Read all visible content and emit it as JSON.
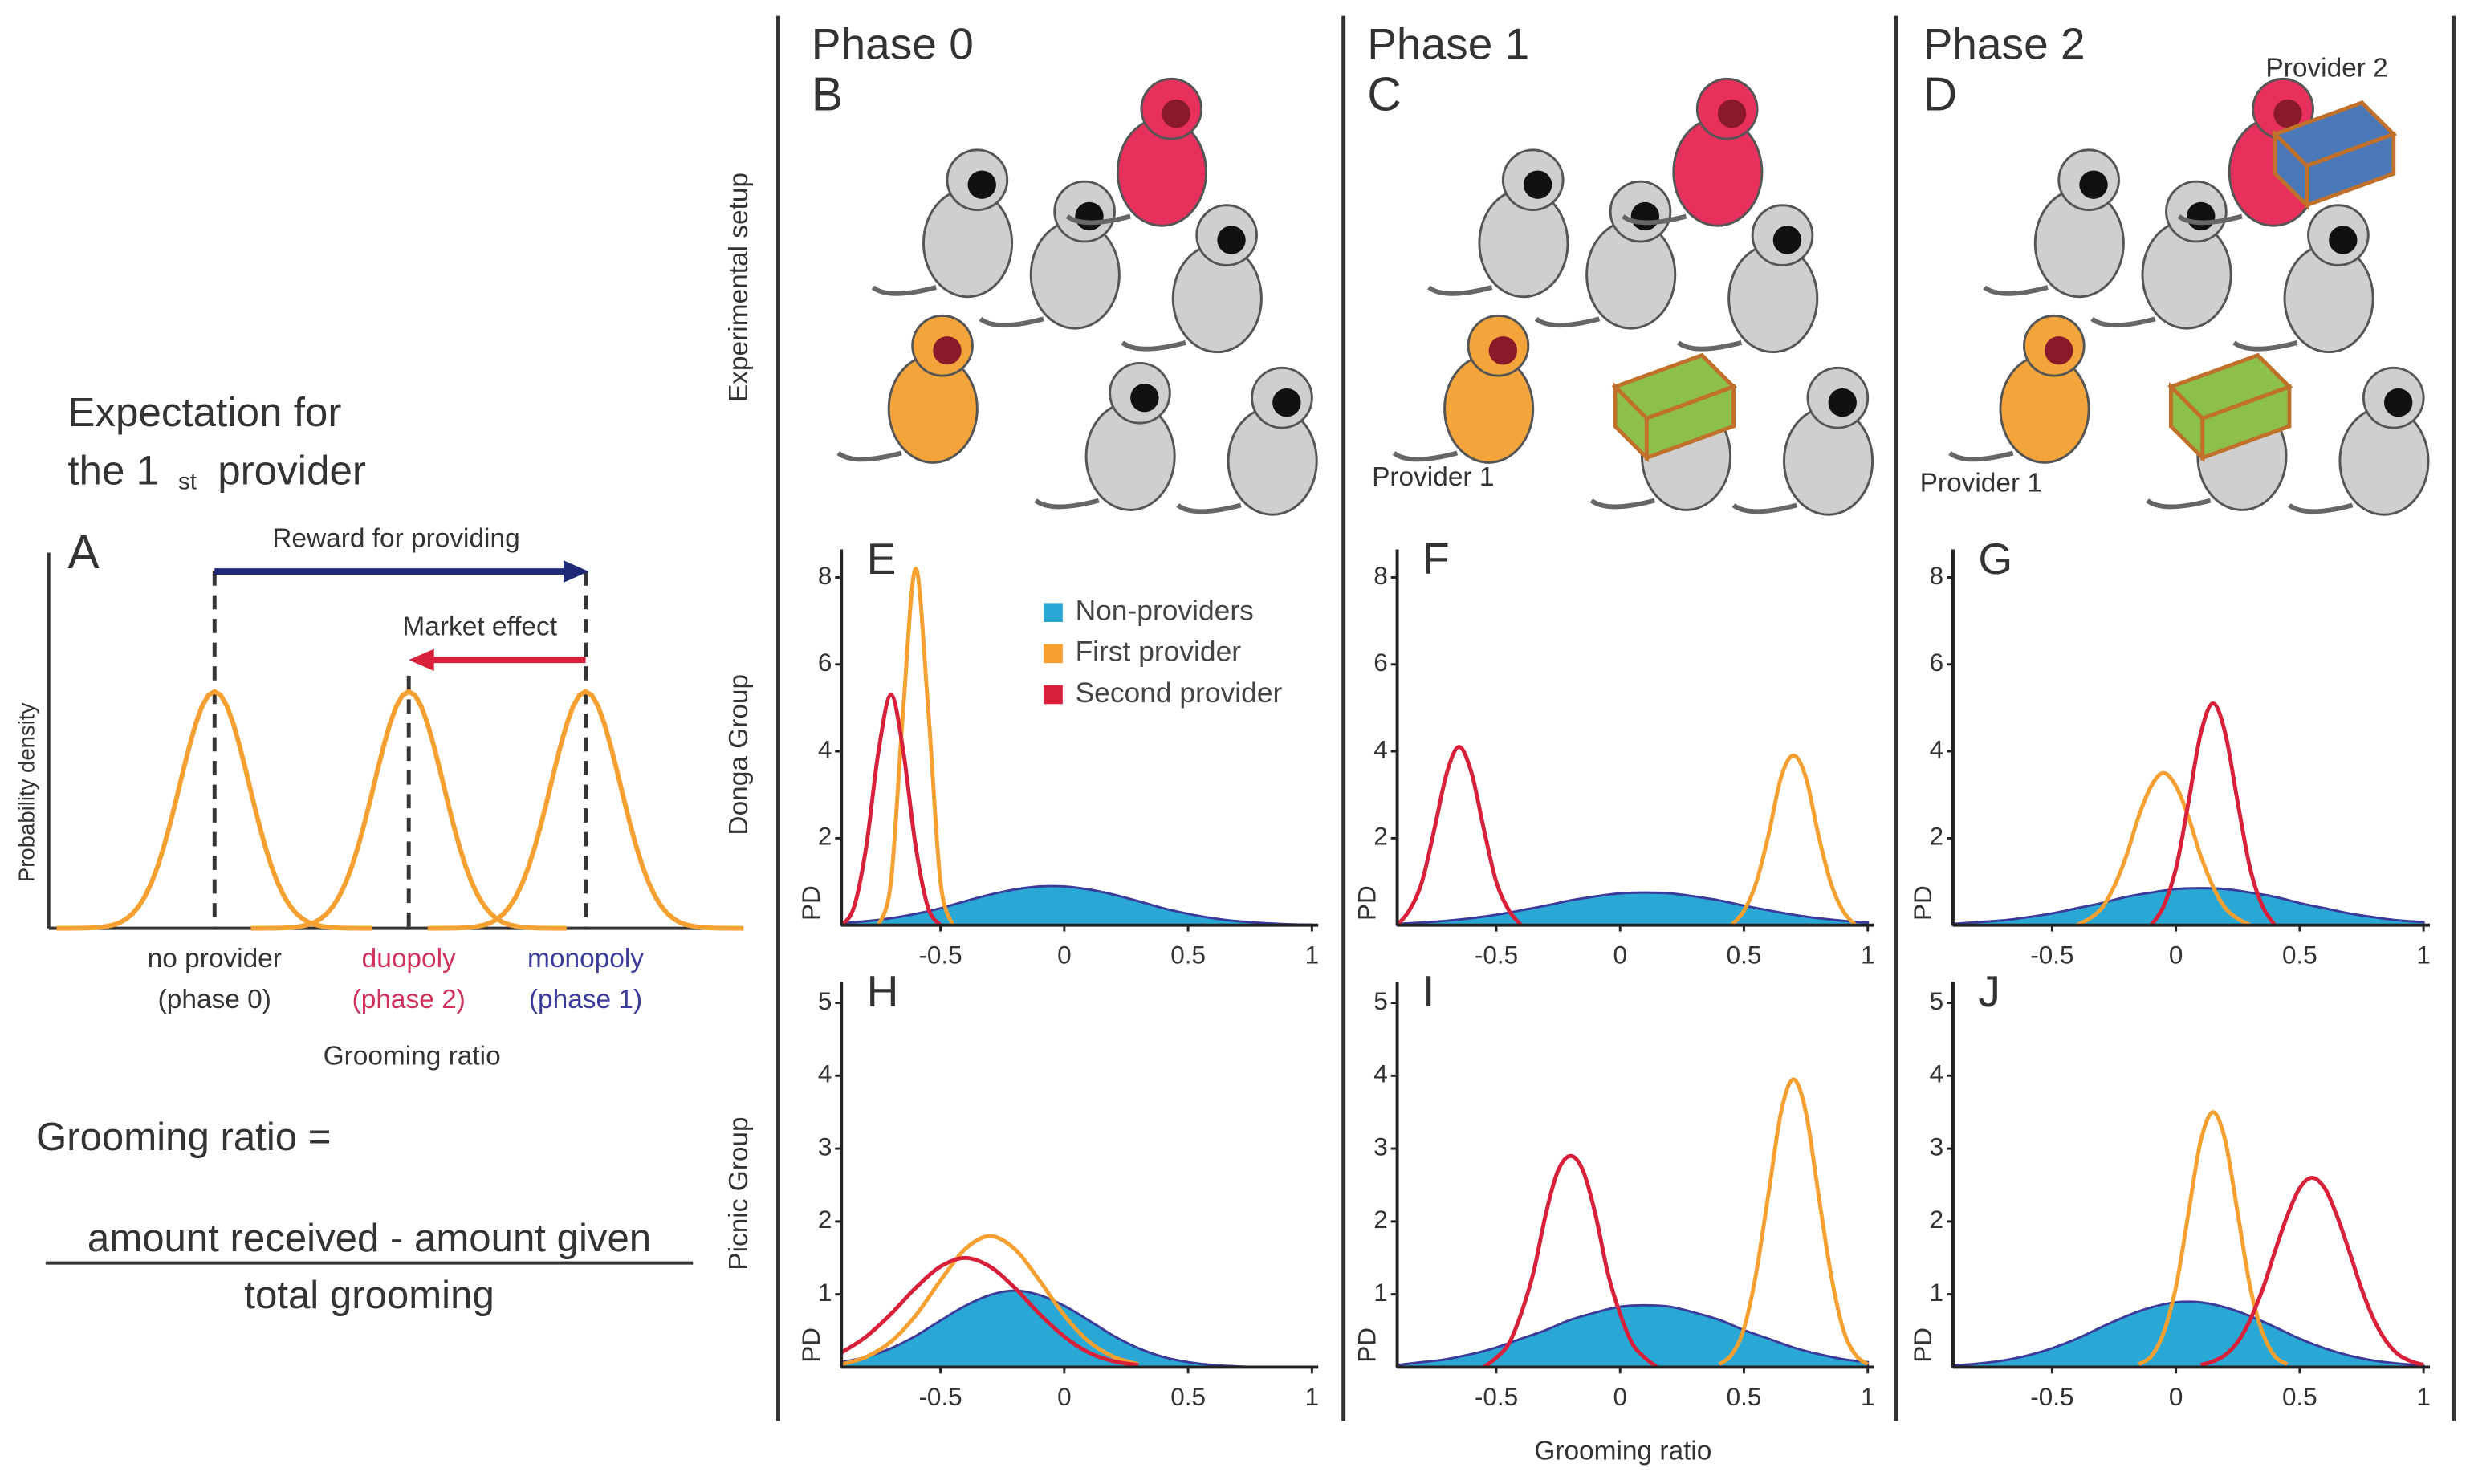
{
  "panel_a": {
    "title_line1": "Expectation for",
    "title_line2": "the 1",
    "title_sup": "st",
    "title_line2_end": "provider",
    "letter": "A",
    "reward": "Reward for providing",
    "market": "Market effect",
    "ylabel": "Probability density",
    "xlabel": "Grooming ratio",
    "categories": [
      {
        "name": "no provider",
        "phase": "(phase 0)",
        "color": "#333333"
      },
      {
        "name": "duopoly",
        "phase": "(phase 2)",
        "color": "#d0315a"
      },
      {
        "name": "monopoly",
        "phase": "(phase 1)",
        "color": "#3b3b9b"
      }
    ],
    "formula_lhs": "Grooming ratio =",
    "numerator": "amount received - amount given",
    "denominator": "total grooming"
  },
  "setup_label": "Experimental setup",
  "group_labels": [
    "Donga Group",
    "Picnic Group"
  ],
  "x_label": "Grooming ratio",
  "phases": [
    {
      "title": "Phase 0",
      "letter": "B"
    },
    {
      "title": "Phase 1",
      "letter": "C",
      "provider_1": "Provider 1"
    },
    {
      "title": "Phase 2",
      "letter": "D",
      "provider_1": "Provider 1",
      "provider_2": "Provider 2"
    }
  ],
  "chart_data": [
    {
      "type": "line",
      "letter": "E",
      "ylabel": "PD",
      "xlim": [
        -0.9,
        1
      ],
      "ylim": [
        0,
        8.5
      ],
      "xticks": [
        -0.5,
        0,
        0.5,
        1
      ],
      "yticks": [
        2,
        4,
        6,
        8
      ],
      "legend": "upper right",
      "series": [
        {
          "name": "Non-providers",
          "color": "#29a8d6",
          "fill": true,
          "x": [
            -0.9,
            -0.8,
            -0.7,
            -0.6,
            -0.5,
            -0.4,
            -0.3,
            -0.2,
            -0.1,
            0,
            0.1,
            0.2,
            0.3,
            0.4,
            0.5,
            0.6,
            0.7,
            0.8,
            0.9,
            1
          ],
          "values": [
            0.05,
            0.09,
            0.16,
            0.26,
            0.39,
            0.55,
            0.7,
            0.82,
            0.89,
            0.89,
            0.82,
            0.7,
            0.55,
            0.39,
            0.26,
            0.16,
            0.09,
            0.05,
            0.02,
            0.01
          ]
        },
        {
          "name": "First provider",
          "color": "#f5a030",
          "x": [
            -0.75,
            -0.7,
            -0.65,
            -0.6,
            -0.55,
            -0.5,
            -0.45
          ],
          "values": [
            0,
            1.0,
            5.0,
            8.2,
            5.0,
            1.0,
            0
          ]
        },
        {
          "name": "Second provider",
          "color": "#d9203a",
          "x": [
            -0.9,
            -0.85,
            -0.8,
            -0.75,
            -0.7,
            -0.65,
            -0.6,
            -0.55,
            -0.5
          ],
          "values": [
            0,
            0.4,
            1.8,
            4.0,
            5.3,
            4.0,
            1.8,
            0.4,
            0
          ]
        }
      ]
    },
    {
      "type": "line",
      "letter": "F",
      "ylabel": "PD",
      "xlim": [
        -0.9,
        1
      ],
      "ylim": [
        0,
        8.5
      ],
      "xticks": [
        -0.5,
        0,
        0.5,
        1
      ],
      "yticks": [
        2,
        4,
        6,
        8
      ],
      "series": [
        {
          "color": "#29a8d6",
          "fill": true,
          "x": [
            -0.9,
            -0.8,
            -0.7,
            -0.6,
            -0.5,
            -0.4,
            -0.3,
            -0.2,
            -0.1,
            0,
            0.1,
            0.2,
            0.3,
            0.4,
            0.5,
            0.6,
            0.7,
            0.8,
            0.9,
            1
          ],
          "values": [
            0.03,
            0.06,
            0.1,
            0.16,
            0.24,
            0.34,
            0.45,
            0.57,
            0.66,
            0.73,
            0.75,
            0.73,
            0.66,
            0.57,
            0.45,
            0.34,
            0.24,
            0.16,
            0.1,
            0.06
          ]
        },
        {
          "color": "#f5a030",
          "x": [
            0.45,
            0.5,
            0.55,
            0.6,
            0.65,
            0.7,
            0.75,
            0.8,
            0.85,
            0.9,
            0.95
          ],
          "values": [
            0,
            0.33,
            0.98,
            2.1,
            3.4,
            3.9,
            3.4,
            2.1,
            0.98,
            0.33,
            0
          ]
        },
        {
          "color": "#d9203a",
          "x": [
            -0.9,
            -0.85,
            -0.8,
            -0.75,
            -0.7,
            -0.65,
            -0.6,
            -0.55,
            -0.5,
            -0.45,
            -0.4
          ],
          "values": [
            0,
            0.35,
            1.0,
            2.2,
            3.5,
            4.1,
            3.5,
            2.2,
            1.0,
            0.35,
            0
          ]
        }
      ]
    },
    {
      "type": "line",
      "letter": "G",
      "ylabel": "PD",
      "xlim": [
        -0.9,
        1
      ],
      "ylim": [
        0,
        8.5
      ],
      "xticks": [
        -0.5,
        0,
        0.5,
        1
      ],
      "yticks": [
        2,
        4,
        6,
        8
      ],
      "series": [
        {
          "color": "#29a8d6",
          "fill": true,
          "x": [
            -0.9,
            -0.8,
            -0.7,
            -0.6,
            -0.5,
            -0.4,
            -0.3,
            -0.2,
            -0.1,
            0,
            0.1,
            0.2,
            0.3,
            0.4,
            0.5,
            0.6,
            0.7,
            0.8,
            0.9,
            1
          ],
          "values": [
            0.03,
            0.07,
            0.11,
            0.18,
            0.27,
            0.39,
            0.51,
            0.65,
            0.75,
            0.83,
            0.85,
            0.83,
            0.75,
            0.65,
            0.51,
            0.39,
            0.27,
            0.18,
            0.11,
            0.07
          ]
        },
        {
          "color": "#f5a030",
          "x": [
            -0.4,
            -0.35,
            -0.3,
            -0.25,
            -0.2,
            -0.15,
            -0.1,
            -0.05,
            0,
            0.05,
            0.1,
            0.15,
            0.2,
            0.25,
            0.3
          ],
          "values": [
            0,
            0.15,
            0.39,
            0.88,
            1.6,
            2.5,
            3.2,
            3.5,
            3.2,
            2.5,
            1.6,
            0.88,
            0.39,
            0.15,
            0
          ]
        },
        {
          "color": "#d9203a",
          "x": [
            -0.1,
            -0.05,
            0,
            0.05,
            0.1,
            0.15,
            0.2,
            0.25,
            0.3,
            0.35,
            0.4
          ],
          "values": [
            0,
            0.43,
            1.3,
            2.8,
            4.4,
            5.1,
            4.4,
            2.8,
            1.3,
            0.43,
            0
          ]
        }
      ]
    },
    {
      "type": "line",
      "letter": "H",
      "ylabel": "PD",
      "xlim": [
        -0.9,
        1
      ],
      "ylim": [
        0,
        5.2
      ],
      "xticks": [
        -0.5,
        0,
        0.5,
        1
      ],
      "yticks": [
        1,
        2,
        3,
        4,
        5
      ],
      "series": [
        {
          "color": "#29a8d6",
          "fill": true,
          "x": [
            -0.9,
            -0.8,
            -0.7,
            -0.6,
            -0.5,
            -0.4,
            -0.3,
            -0.2,
            -0.1,
            0,
            0.1,
            0.2,
            0.3,
            0.4,
            0.5,
            0.6,
            0.7,
            0.8,
            0.9,
            1
          ],
          "values": [
            0.07,
            0.14,
            0.26,
            0.43,
            0.64,
            0.84,
            0.99,
            1.05,
            0.99,
            0.84,
            0.64,
            0.43,
            0.26,
            0.14,
            0.07,
            0.03,
            0.01,
            0,
            0,
            0
          ]
        },
        {
          "color": "#f5a030",
          "x": [
            -0.9,
            -0.8,
            -0.7,
            -0.6,
            -0.5,
            -0.4,
            -0.3,
            -0.2,
            -0.1,
            0,
            0.1,
            0.2,
            0.3
          ],
          "values": [
            0.04,
            0.14,
            0.35,
            0.71,
            1.19,
            1.62,
            1.8,
            1.62,
            1.19,
            0.71,
            0.35,
            0.14,
            0.04
          ]
        },
        {
          "color": "#d9203a",
          "x": [
            -0.9,
            -0.8,
            -0.7,
            -0.6,
            -0.5,
            -0.4,
            -0.3,
            -0.2,
            -0.1,
            0,
            0.1,
            0.2,
            0.3
          ],
          "values": [
            0.2,
            0.42,
            0.73,
            1.09,
            1.38,
            1.5,
            1.38,
            1.09,
            0.73,
            0.42,
            0.2,
            0.08,
            0.03
          ]
        }
      ]
    },
    {
      "type": "line",
      "letter": "I",
      "ylabel": "PD",
      "xlim": [
        -0.9,
        1
      ],
      "ylim": [
        0,
        5.2
      ],
      "xticks": [
        -0.5,
        0,
        0.5,
        1
      ],
      "yticks": [
        1,
        2,
        3,
        4,
        5
      ],
      "series": [
        {
          "color": "#29a8d6",
          "fill": true,
          "x": [
            -0.9,
            -0.8,
            -0.7,
            -0.6,
            -0.5,
            -0.4,
            -0.3,
            -0.2,
            -0.1,
            0,
            0.1,
            0.2,
            0.3,
            0.4,
            0.5,
            0.6,
            0.7,
            0.8,
            0.9,
            1
          ],
          "values": [
            0.03,
            0.07,
            0.11,
            0.18,
            0.27,
            0.39,
            0.51,
            0.65,
            0.75,
            0.83,
            0.85,
            0.83,
            0.75,
            0.65,
            0.51,
            0.39,
            0.27,
            0.18,
            0.11,
            0.07
          ]
        },
        {
          "color": "#f5a030",
          "x": [
            0.4,
            0.45,
            0.5,
            0.55,
            0.6,
            0.65,
            0.7,
            0.75,
            0.8,
            0.85,
            0.9,
            0.95,
            1
          ],
          "values": [
            0.04,
            0.17,
            0.53,
            1.3,
            2.4,
            3.5,
            3.95,
            3.5,
            2.4,
            1.3,
            0.53,
            0.17,
            0.04
          ]
        },
        {
          "color": "#d9203a",
          "x": [
            -0.55,
            -0.5,
            -0.45,
            -0.4,
            -0.35,
            -0.3,
            -0.25,
            -0.2,
            -0.15,
            -0.1,
            -0.05,
            0,
            0.05,
            0.1,
            0.15
          ],
          "values": [
            0,
            0.13,
            0.32,
            0.73,
            1.3,
            2.1,
            2.7,
            2.9,
            2.7,
            2.1,
            1.3,
            0.73,
            0.32,
            0.13,
            0
          ]
        }
      ]
    },
    {
      "type": "line",
      "letter": "J",
      "ylabel": "PD",
      "xlim": [
        -0.9,
        1
      ],
      "ylim": [
        0,
        5.2
      ],
      "xticks": [
        -0.5,
        0,
        0.5,
        1
      ],
      "yticks": [
        1,
        2,
        3,
        4,
        5
      ],
      "series": [
        {
          "color": "#29a8d6",
          "fill": true,
          "x": [
            -0.9,
            -0.8,
            -0.7,
            -0.6,
            -0.5,
            -0.4,
            -0.3,
            -0.2,
            -0.1,
            0,
            0.1,
            0.2,
            0.3,
            0.4,
            0.5,
            0.6,
            0.7,
            0.8,
            0.9,
            1
          ],
          "values": [
            0.02,
            0.05,
            0.09,
            0.16,
            0.26,
            0.39,
            0.55,
            0.7,
            0.82,
            0.89,
            0.89,
            0.82,
            0.7,
            0.55,
            0.39,
            0.26,
            0.16,
            0.09,
            0.05,
            0.02
          ]
        },
        {
          "color": "#f5a030",
          "x": [
            -0.15,
            -0.1,
            -0.05,
            0,
            0.05,
            0.1,
            0.15,
            0.2,
            0.25,
            0.3,
            0.35,
            0.4,
            0.45
          ],
          "values": [
            0.04,
            0.15,
            0.47,
            1.1,
            2.1,
            3.1,
            3.5,
            3.1,
            2.1,
            1.1,
            0.47,
            0.15,
            0.04
          ]
        },
        {
          "color": "#d9203a",
          "x": [
            0.1,
            0.15,
            0.2,
            0.25,
            0.3,
            0.35,
            0.4,
            0.45,
            0.5,
            0.55,
            0.6,
            0.65,
            0.7,
            0.75,
            0.8,
            0.85,
            0.9,
            0.95,
            1
          ],
          "values": [
            0.03,
            0.08,
            0.17,
            0.35,
            0.65,
            1.07,
            1.59,
            2.08,
            2.46,
            2.6,
            2.46,
            2.08,
            1.59,
            1.07,
            0.65,
            0.35,
            0.17,
            0.08,
            0.03
          ]
        }
      ]
    }
  ]
}
